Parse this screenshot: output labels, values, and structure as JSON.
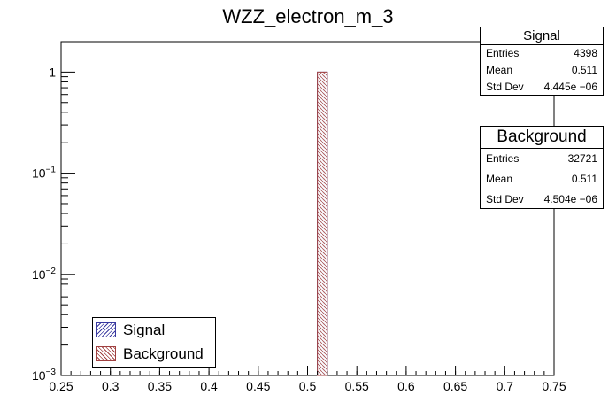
{
  "chart_data": {
    "type": "bar",
    "title": "WZZ_electron_m_3",
    "xlabel": "",
    "ylabel": "",
    "xlim": [
      0.25,
      0.75
    ],
    "ylim": [
      0.001,
      2
    ],
    "log_y": true,
    "x_ticks": [
      "0.25",
      "0.3",
      "0.35",
      "0.4",
      "0.45",
      "0.5",
      "0.55",
      "0.6",
      "0.65",
      "0.7",
      "0.75"
    ],
    "x_tick_values": [
      0.25,
      0.3,
      0.35,
      0.4,
      0.45,
      0.5,
      0.55,
      0.6,
      0.65,
      0.7,
      0.75
    ],
    "y_ticks": [
      {
        "value": 1,
        "base": "1",
        "exp": ""
      },
      {
        "value": 0.1,
        "base": "10",
        "exp": "−1"
      },
      {
        "value": 0.01,
        "base": "10",
        "exp": "−2"
      },
      {
        "value": 0.001,
        "base": "10",
        "exp": "−3"
      }
    ],
    "bin_width": 0.01,
    "series": [
      {
        "name": "Signal",
        "bin_low": 0.51,
        "value": 1.0,
        "color": "#3a3aa0",
        "fill": "#c8c8ec"
      },
      {
        "name": "Background",
        "bin_low": 0.51,
        "value": 1.0,
        "color": "#a04040",
        "fill": "#f0d0d0"
      }
    ],
    "legend_position": "bottom-left"
  },
  "stats": {
    "signal": {
      "title": "Signal",
      "rows": [
        {
          "label": "Entries",
          "value": "4398"
        },
        {
          "label": "Mean",
          "value": "0.511"
        },
        {
          "label": "Std Dev",
          "value": "4.445e −06"
        }
      ]
    },
    "background": {
      "title": "Background",
      "rows": [
        {
          "label": "Entries",
          "value": "32721"
        },
        {
          "label": "Mean",
          "value": "0.511"
        },
        {
          "label": "Std Dev",
          "value": "4.504e −06"
        }
      ]
    }
  },
  "legend": {
    "signal_label": "Signal",
    "background_label": "Background"
  }
}
